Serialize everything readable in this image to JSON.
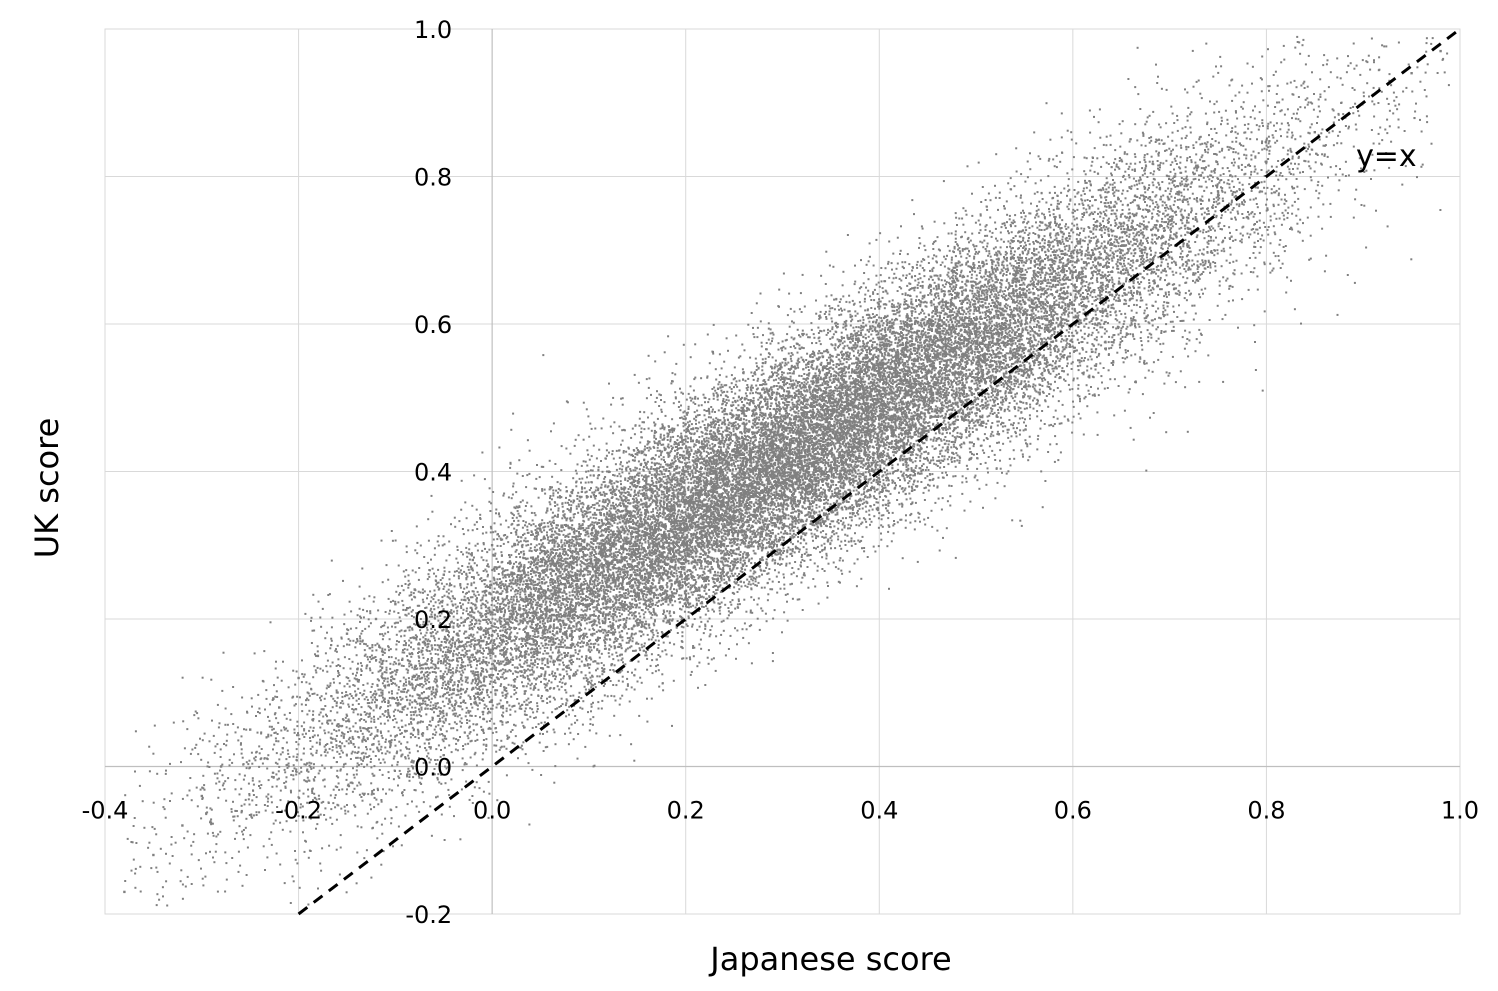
{
  "chart_data": {
    "type": "scatter",
    "title": "",
    "xlabel": "Japanese score",
    "ylabel": "UK score",
    "xlim": [
      -0.4,
      1.0
    ],
    "ylim": [
      -0.2,
      1.0
    ],
    "x_ticks": [
      "-0.4",
      "-0.2",
      "0.0",
      "0.2",
      "0.4",
      "0.6",
      "0.8",
      "1.0"
    ],
    "y_ticks": [
      "-0.2",
      "0.0",
      "0.2",
      "0.4",
      "0.6",
      "0.8",
      "1.0"
    ],
    "grid": true,
    "marker_color": "#808080",
    "reference_line": {
      "label": "y=x",
      "style": "dashed",
      "color": "#000000",
      "x": [
        -0.2,
        1.0
      ],
      "y": [
        -0.2,
        1.0
      ]
    },
    "series": [
      {
        "points": [
          {
            "x": -0.38,
            "y": -0.17
          },
          {
            "x": -0.35,
            "y": -0.12
          },
          {
            "x": -0.32,
            "y": -0.08
          },
          {
            "x": -0.3,
            "y": -0.04
          },
          {
            "x": -0.28,
            "y": 0.0
          },
          {
            "x": -0.25,
            "y": 0.05
          },
          {
            "x": -0.22,
            "y": 0.08
          },
          {
            "x": -0.2,
            "y": 0.12
          },
          {
            "x": -0.18,
            "y": 0.15
          },
          {
            "x": -0.15,
            "y": 0.18
          },
          {
            "x": -0.12,
            "y": 0.2
          },
          {
            "x": -0.1,
            "y": 0.22
          },
          {
            "x": -0.08,
            "y": 0.24
          },
          {
            "x": -0.05,
            "y": 0.26
          },
          {
            "x": -0.02,
            "y": 0.28
          },
          {
            "x": 0.0,
            "y": 0.3
          },
          {
            "x": 0.05,
            "y": 0.32
          },
          {
            "x": 0.1,
            "y": 0.35
          },
          {
            "x": 0.15,
            "y": 0.38
          },
          {
            "x": 0.2,
            "y": 0.4
          },
          {
            "x": 0.25,
            "y": 0.43
          },
          {
            "x": 0.3,
            "y": 0.46
          },
          {
            "x": 0.35,
            "y": 0.5
          },
          {
            "x": 0.4,
            "y": 0.53
          },
          {
            "x": 0.45,
            "y": 0.57
          },
          {
            "x": 0.5,
            "y": 0.6
          },
          {
            "x": 0.55,
            "y": 0.63
          },
          {
            "x": 0.6,
            "y": 0.67
          },
          {
            "x": 0.65,
            "y": 0.7
          },
          {
            "x": 0.7,
            "y": 0.74
          },
          {
            "x": 0.75,
            "y": 0.78
          },
          {
            "x": 0.8,
            "y": 0.82
          },
          {
            "x": 0.85,
            "y": 0.86
          },
          {
            "x": 0.9,
            "y": 0.9
          },
          {
            "x": 0.95,
            "y": 0.94
          },
          {
            "x": 0.98,
            "y": 0.97
          }
        ]
      }
    ]
  }
}
